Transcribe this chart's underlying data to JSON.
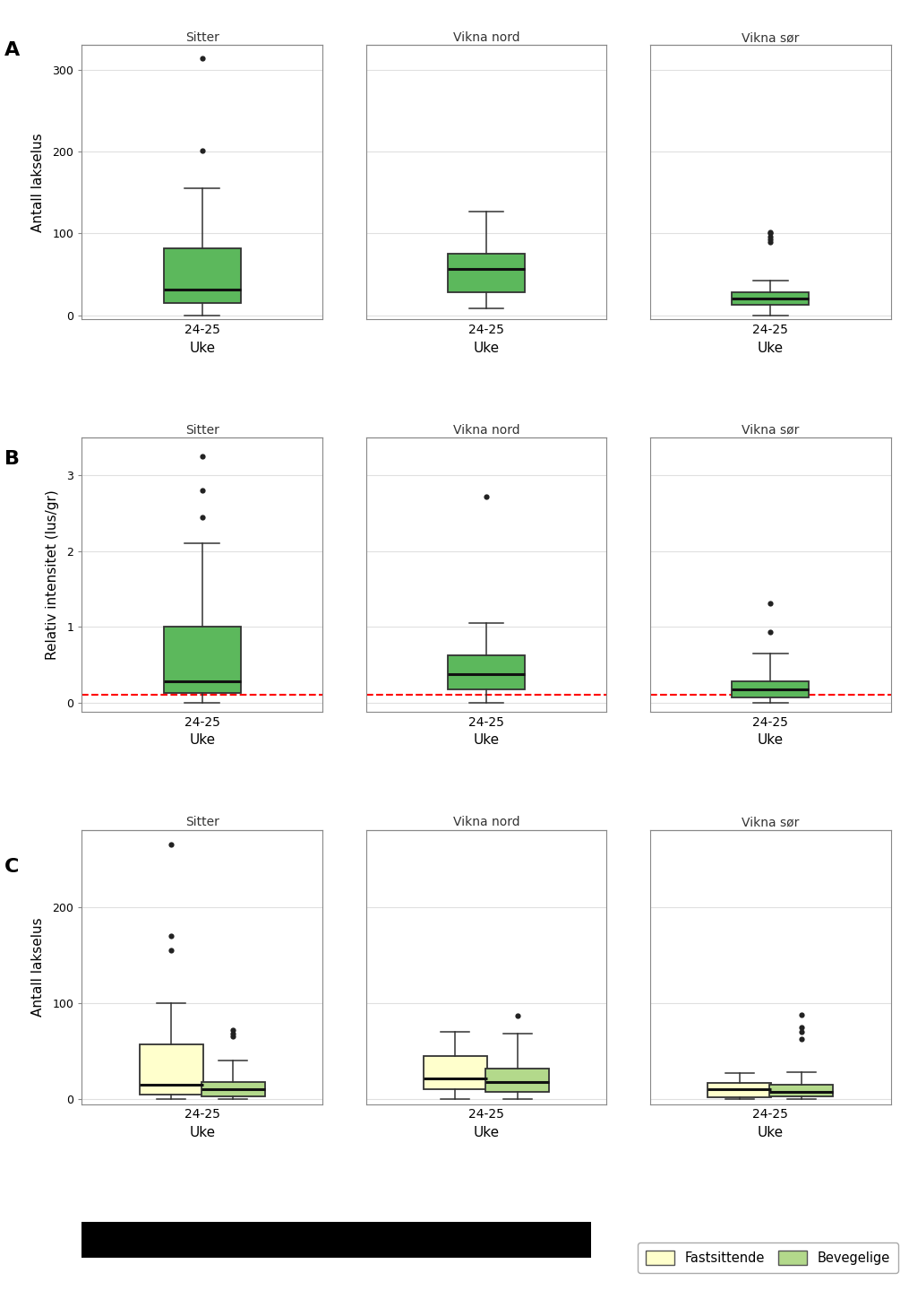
{
  "stations": [
    "Sitter",
    "Vikna nord",
    "Vikna sør"
  ],
  "uke_label": "24-25",
  "xlabel": "Uke",
  "panel_A": {
    "ylabel": "Antall lakselus",
    "ylim": [
      -5,
      330
    ],
    "yticks": [
      0,
      100,
      200,
      300
    ],
    "color": "#5cb85c",
    "boxes": [
      {
        "q1": 15,
        "median": 32,
        "q3": 82,
        "whislo": 0,
        "whishi": 155,
        "fliers": [
          201,
          314
        ]
      },
      {
        "q1": 28,
        "median": 57,
        "q3": 75,
        "whislo": 9,
        "whishi": 127,
        "fliers": []
      },
      {
        "q1": 13,
        "median": 20,
        "q3": 28,
        "whislo": 0,
        "whishi": 42,
        "fliers": [
          90,
          93,
          96,
          100,
          102
        ]
      }
    ]
  },
  "panel_B": {
    "ylabel": "Relativ intensitet (lus/gr)",
    "ylim": [
      -0.12,
      3.5
    ],
    "yticks": [
      0,
      1,
      2,
      3
    ],
    "color": "#5cb85c",
    "red_line": 0.1,
    "boxes": [
      {
        "q1": 0.13,
        "median": 0.28,
        "q3": 1.0,
        "whislo": 0.0,
        "whishi": 2.1,
        "fliers": [
          2.45,
          2.8,
          3.25
        ]
      },
      {
        "q1": 0.18,
        "median": 0.38,
        "q3": 0.62,
        "whislo": 0.0,
        "whishi": 1.05,
        "fliers": [
          2.72
        ]
      },
      {
        "q1": 0.07,
        "median": 0.18,
        "q3": 0.28,
        "whislo": 0.0,
        "whishi": 0.65,
        "fliers": [
          0.93,
          1.31
        ]
      }
    ]
  },
  "panel_C": {
    "ylabel": "Antall lakselus",
    "ylim": [
      -5,
      280
    ],
    "yticks": [
      0,
      100,
      200
    ],
    "color_fast": "#ffffcc",
    "color_bev": "#b3d98b",
    "boxes_fast": [
      {
        "q1": 5,
        "median": 15,
        "q3": 57,
        "whislo": 0,
        "whishi": 100,
        "fliers": [
          155,
          170,
          265
        ]
      },
      {
        "q1": 10,
        "median": 22,
        "q3": 45,
        "whislo": 0,
        "whishi": 70,
        "fliers": []
      },
      {
        "q1": 2,
        "median": 10,
        "q3": 17,
        "whislo": 0,
        "whishi": 27,
        "fliers": []
      }
    ],
    "boxes_bev": [
      {
        "q1": 3,
        "median": 10,
        "q3": 18,
        "whislo": 0,
        "whishi": 40,
        "fliers": [
          65,
          68,
          72
        ]
      },
      {
        "q1": 8,
        "median": 18,
        "q3": 32,
        "whislo": 0,
        "whishi": 68,
        "fliers": [
          87
        ]
      },
      {
        "q1": 3,
        "median": 8,
        "q3": 15,
        "whislo": 0,
        "whishi": 28,
        "fliers": [
          63,
          70,
          75,
          88
        ]
      }
    ]
  },
  "legend": {
    "fast_color": "#ffffcc",
    "bev_color": "#b3d98b",
    "fast_label": "Fastsittende",
    "bev_label": "Bevegelige"
  },
  "bg_color": "#ffffff",
  "panel_bg": "#ffffff",
  "strip_bg": "#cccccc",
  "strip_border": "#888888",
  "panel_border": "#888888",
  "grid_color": "#e0e0e0",
  "box_border": "#333333",
  "median_color": "#111111",
  "whisker_color": "#333333",
  "flier_color": "#222222"
}
